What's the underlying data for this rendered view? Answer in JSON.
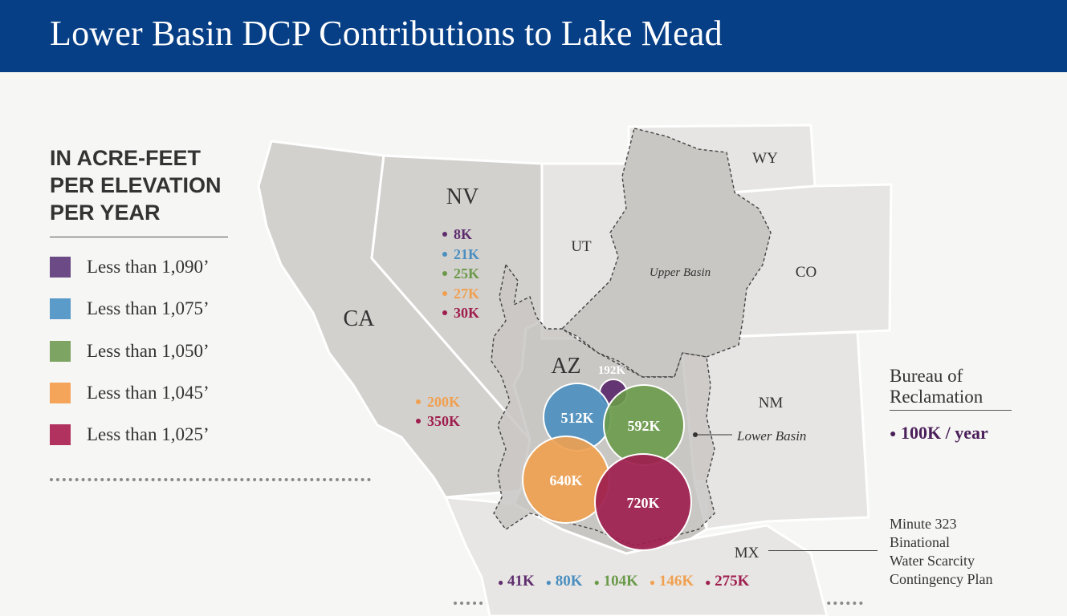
{
  "title": "Lower Basin DCP Contributions to Lake Mead",
  "legend": {
    "title_lines": [
      "IN ACRE-FEET",
      "PER ELEVATION",
      "PER YEAR"
    ],
    "items": [
      {
        "label": "Less than 1,090’",
        "color": "#6b4a85"
      },
      {
        "label": "Less than 1,075’",
        "color": "#5b9bc9"
      },
      {
        "label": "Less than 1,050’",
        "color": "#7da462"
      },
      {
        "label": "Less than 1,045’",
        "color": "#f5a55a"
      },
      {
        "label": "Less than 1,025’",
        "color": "#b2325f"
      }
    ]
  },
  "colors": {
    "purple": "#5e2d6e",
    "blue": "#4a8fc0",
    "green": "#6a9a4a",
    "orange": "#f0a050",
    "crimson": "#9e1e4e",
    "header": "#073f86"
  },
  "states": {
    "CA": "CA",
    "NV": "NV",
    "UT": "UT",
    "WY": "WY",
    "CO": "CO",
    "NM": "NM",
    "AZ": "AZ",
    "MX": "MX"
  },
  "basins": {
    "upper": "Upper Basin",
    "lower": "Lower Basin"
  },
  "nevada": [
    "8K",
    "21K",
    "25K",
    "27K",
    "30K"
  ],
  "california": [
    "200K",
    "350K"
  ],
  "arizona": [
    "192K",
    "512K",
    "592K",
    "640K",
    "720K"
  ],
  "mexico": [
    "41K",
    "80K",
    "104K",
    "146K",
    "275K"
  ],
  "bureau": {
    "lines": [
      "Bureau of",
      "Reclamation"
    ],
    "value": "100K / year"
  },
  "minute323": [
    "Minute 323",
    "Binational",
    "Water Scarcity",
    "Contingency Plan"
  ]
}
